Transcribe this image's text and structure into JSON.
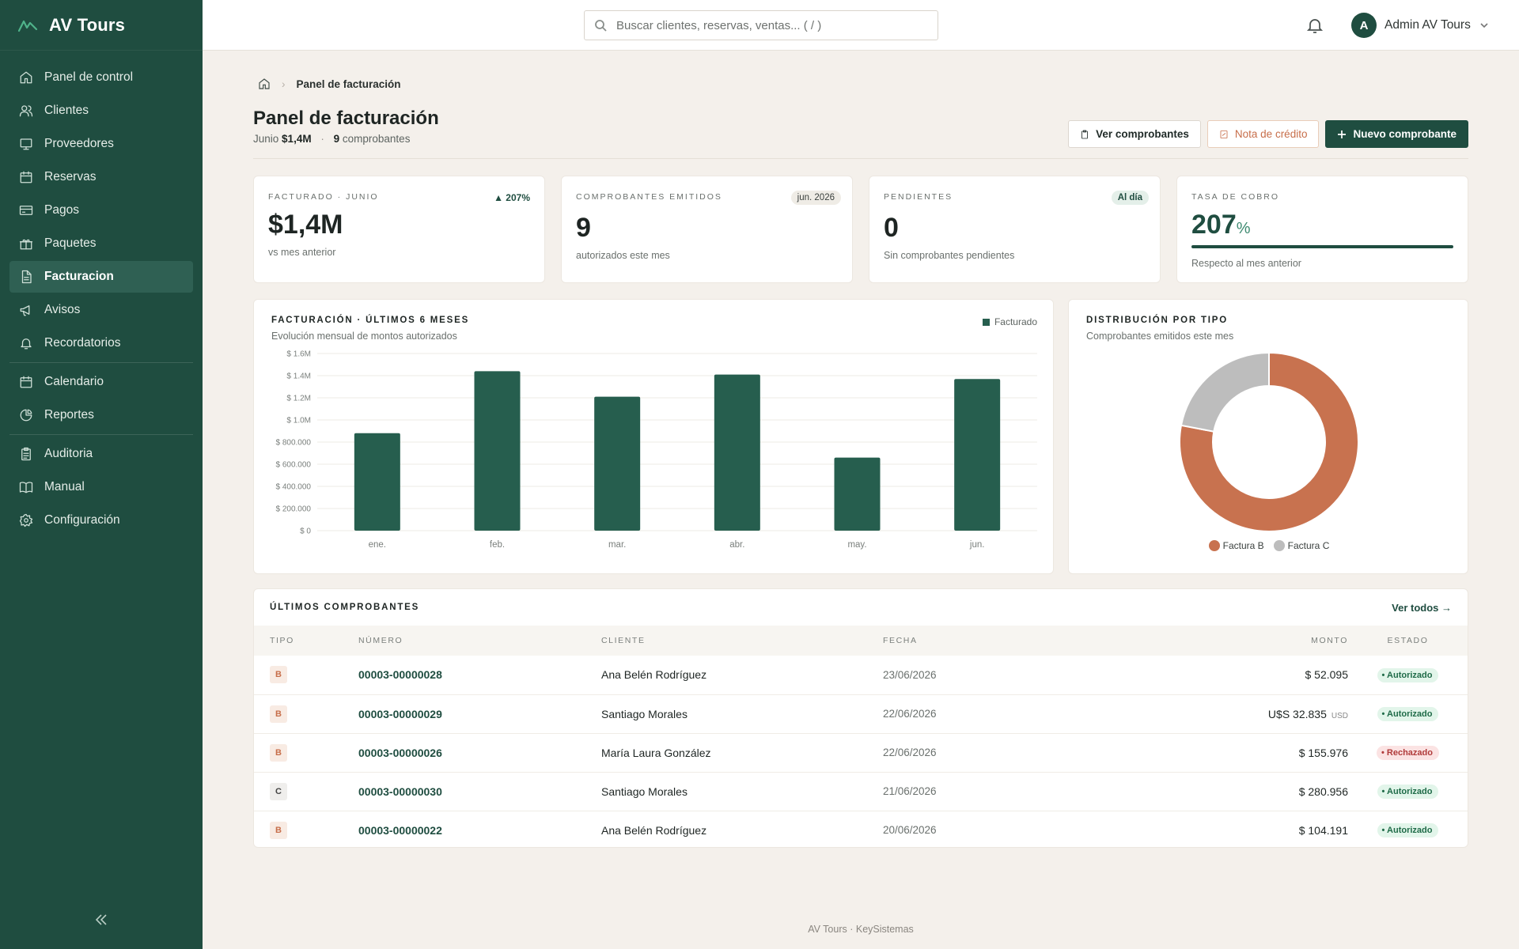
{
  "brand": {
    "name": "AV Tours"
  },
  "sidebar": {
    "items": [
      {
        "label": "Panel de control",
        "icon": "home-icon"
      },
      {
        "label": "Clientes",
        "icon": "users-icon"
      },
      {
        "label": "Proveedores",
        "icon": "monitor-icon"
      },
      {
        "label": "Reservas",
        "icon": "calendar-icon"
      },
      {
        "label": "Pagos",
        "icon": "card-icon"
      },
      {
        "label": "Paquetes",
        "icon": "gift-icon"
      },
      {
        "label": "Facturacion",
        "icon": "document-icon",
        "active": true
      },
      {
        "label": "Avisos",
        "icon": "megaphone-icon"
      },
      {
        "label": "Recordatorios",
        "icon": "bell-icon"
      },
      {
        "label": "Calendario",
        "icon": "calendar-icon"
      },
      {
        "label": "Reportes",
        "icon": "pie-chart-icon"
      },
      {
        "label": "Auditoria",
        "icon": "clipboard-icon"
      },
      {
        "label": "Manual",
        "icon": "book-icon"
      },
      {
        "label": "Configuración",
        "icon": "gear-icon"
      }
    ]
  },
  "topbar": {
    "search_placeholder": "Buscar clientes, reservas, ventas... ( / )",
    "user": {
      "initial": "A",
      "name": "Admin AV Tours"
    }
  },
  "breadcrumb": {
    "current": "Panel de facturación"
  },
  "page": {
    "title": "Panel de facturación",
    "sub_month": "Junio",
    "sub_amount": "$1,4M",
    "sub_count": "9",
    "sub_count_label": "comprobantes"
  },
  "actions": {
    "view": "Ver comprobantes",
    "credit": "Nota de crédito",
    "new": "Nuevo comprobante"
  },
  "kpis": {
    "billed": {
      "label": "FACTURADO · JUNIO",
      "value": "$1,4M",
      "trend": "207%",
      "note": "vs mes anterior"
    },
    "issued": {
      "label": "COMPROBANTES EMITIDOS",
      "badge": "jun. 2026",
      "value": "9",
      "note": "autorizados este mes"
    },
    "pending": {
      "label": "PENDIENTES",
      "badge": "Al día",
      "value": "0",
      "note": "Sin comprobantes pendientes"
    },
    "collection": {
      "label": "TASA DE COBRO",
      "value": "207",
      "unit": "%",
      "note": "Respecto al mes anterior",
      "progress": 1.0
    }
  },
  "bar_chart_card": {
    "title": "FACTURACIÓN · ÚLTIMOS 6 MESES",
    "subtitle": "Evolución mensual de montos autorizados",
    "legend": "Facturado"
  },
  "donut_card": {
    "title": "DISTRIBUCIÓN POR TIPO",
    "subtitle": "Comprobantes emitidos este mes"
  },
  "chart_data": [
    {
      "type": "bar",
      "categories": [
        "ene.",
        "feb.",
        "mar.",
        "abr.",
        "may.",
        "jun."
      ],
      "series": [
        {
          "name": "Facturado",
          "values": [
            880000,
            1440000,
            1210000,
            1410000,
            660000,
            1370000
          ]
        }
      ],
      "ylim": [
        0,
        1600000
      ],
      "yticks": [
        "$ 0",
        "$ 200.000",
        "$ 400.000",
        "$ 600.000",
        "$ 800.000",
        "$ 1.0M",
        "$ 1.2M",
        "$ 1.4M",
        "$ 1.6M"
      ],
      "color": "#265e4e",
      "grid": true,
      "legend": "top-right"
    },
    {
      "type": "pie",
      "donut": true,
      "categories": [
        "Factura B",
        "Factura C"
      ],
      "values": [
        78,
        22
      ],
      "colors": [
        "#c8724f",
        "#bdbdbd"
      ],
      "legend": "bottom"
    }
  ],
  "table": {
    "title": "ÚLTIMOS COMPROBANTES",
    "see_all": "Ver todos →",
    "headers": [
      "TIPO",
      "NÚMERO",
      "CLIENTE",
      "FECHA",
      "MONTO",
      "ESTADO"
    ],
    "rows": [
      {
        "tipo": "B",
        "numero": "00003-00000028",
        "cliente": "Ana Belén Rodríguez",
        "fecha": "23/06/2026",
        "monto": "$ 52.095",
        "moneda": "",
        "estado": "• Autorizado",
        "ok": true
      },
      {
        "tipo": "B",
        "numero": "00003-00000029",
        "cliente": "Santiago Morales",
        "fecha": "22/06/2026",
        "monto": "U$S 32.835",
        "moneda": "USD",
        "estado": "• Autorizado",
        "ok": true
      },
      {
        "tipo": "B",
        "numero": "00003-00000026",
        "cliente": "María Laura González",
        "fecha": "22/06/2026",
        "monto": "$ 155.976",
        "moneda": "",
        "estado": "• Rechazado",
        "ok": false
      },
      {
        "tipo": "C",
        "numero": "00003-00000030",
        "cliente": "Santiago Morales",
        "fecha": "21/06/2026",
        "monto": "$ 280.956",
        "moneda": "",
        "estado": "• Autorizado",
        "ok": true
      },
      {
        "tipo": "B",
        "numero": "00003-00000022",
        "cliente": "Ana Belén Rodríguez",
        "fecha": "20/06/2026",
        "monto": "$ 104.191",
        "moneda": "",
        "estado": "• Autorizado",
        "ok": true
      }
    ]
  },
  "footer": "AV Tours · KeySistemas",
  "colors": {
    "primary": "#1f4d40",
    "accent": "#c8724f",
    "background": "#f4f0eb"
  }
}
